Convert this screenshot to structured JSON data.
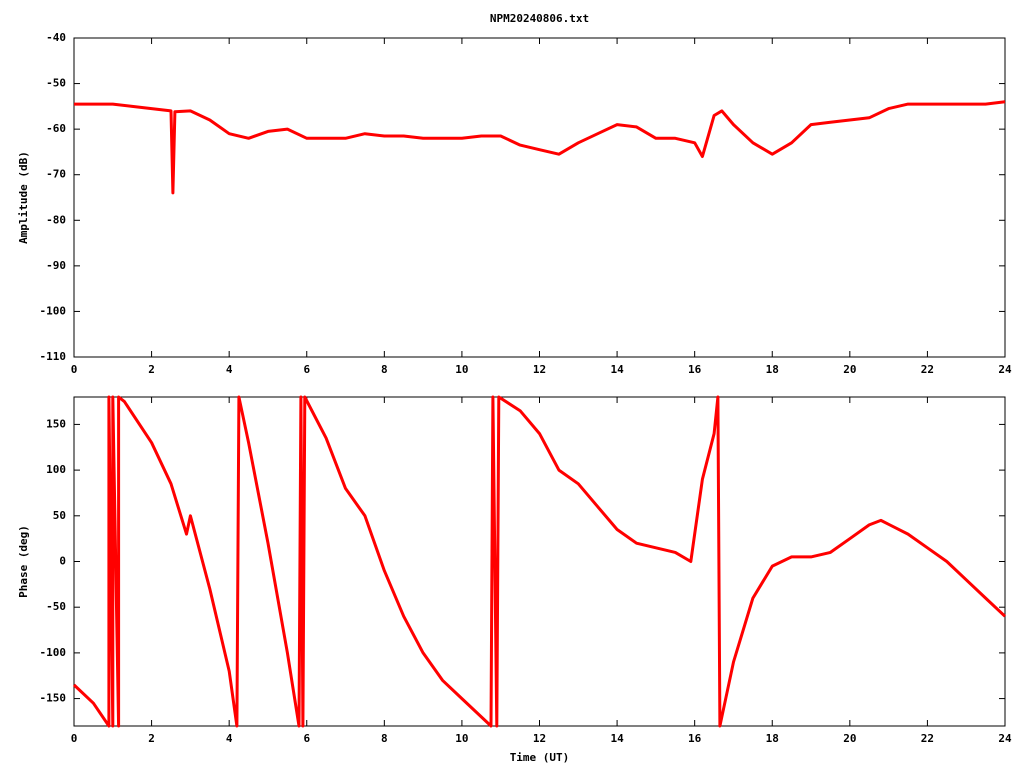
{
  "chart_data": [
    {
      "type": "line",
      "title": "NPM20240806.txt",
      "ylabel": "Amplitude (dB)",
      "xlim": [
        0,
        24
      ],
      "xticks": [
        0,
        2,
        4,
        6,
        8,
        10,
        12,
        14,
        16,
        18,
        20,
        22,
        24
      ],
      "ylim": [
        -110,
        -40
      ],
      "yticks": [
        -40,
        -50,
        -60,
        -70,
        -80,
        -90,
        -100,
        -110
      ],
      "x": [
        0,
        0.5,
        1,
        1.5,
        2,
        2.5,
        2.55,
        2.6,
        3,
        3.5,
        4,
        4.5,
        5,
        5.5,
        6,
        6.5,
        7,
        7.5,
        8,
        8.5,
        9,
        9.5,
        10,
        10.5,
        11,
        11.5,
        12,
        12.5,
        13,
        13.5,
        14,
        14.5,
        15,
        15.5,
        16,
        16.2,
        16.5,
        16.7,
        17,
        17.5,
        18,
        18.5,
        19,
        19.5,
        20,
        20.5,
        21,
        21.5,
        22,
        22.5,
        23,
        23.5,
        24
      ],
      "series": [
        {
          "color": "#ff0000",
          "values": [
            -54.5,
            -54.5,
            -54.5,
            -55,
            -55.5,
            -56,
            -74,
            -56.2,
            -56,
            -58,
            -61,
            -62,
            -60.5,
            -60,
            -62,
            -62,
            -62,
            -61,
            -61.5,
            -61.5,
            -62,
            -62,
            -62,
            -61.5,
            -61.5,
            -63.5,
            -64.5,
            -65.5,
            -63,
            -61,
            -59,
            -59.5,
            -62,
            -62,
            -63,
            -66,
            -57,
            -56,
            -59,
            -63,
            -65.5,
            -63,
            -59,
            -58.5,
            -58,
            -57.5,
            -55.5,
            -54.5,
            -54.5,
            -54.5,
            -54.5,
            -54.5,
            -54
          ]
        }
      ]
    },
    {
      "type": "line",
      "xlabel": "Time (UT)",
      "ylabel": "Phase (deg)",
      "xlim": [
        0,
        24
      ],
      "xticks": [
        0,
        2,
        4,
        6,
        8,
        10,
        12,
        14,
        16,
        18,
        20,
        22,
        24
      ],
      "ylim": [
        -180,
        180
      ],
      "yticks": [
        150,
        100,
        50,
        0,
        -50,
        -100,
        -150
      ],
      "x": [
        0,
        0.5,
        0.9,
        0.9,
        1.0,
        1.0,
        1.15,
        1.15,
        1.3,
        2,
        2.5,
        2.9,
        3.0,
        3.5,
        4.0,
        4.2,
        4.25,
        4.5,
        5,
        5.5,
        5.8,
        5.85,
        5.9,
        5.95,
        6.5,
        7,
        7.5,
        8,
        8.5,
        9,
        9.5,
        10,
        10.5,
        10.75,
        10.8,
        10.9,
        10.95,
        11.5,
        12,
        12.5,
        13,
        13.5,
        14,
        14.5,
        15,
        15.5,
        15.9,
        16.2,
        16.5,
        16.6,
        16.65,
        17,
        17.5,
        18,
        18.5,
        19,
        19.5,
        20,
        20.5,
        20.8,
        21.5,
        22,
        22.5,
        23,
        23.5,
        24
      ],
      "series": [
        {
          "color": "#ff0000",
          "values": [
            -135,
            -155,
            -180,
            180,
            -180,
            180,
            -180,
            180,
            175,
            130,
            85,
            30,
            50,
            -30,
            -120,
            -180,
            180,
            130,
            20,
            -100,
            -180,
            180,
            -180,
            180,
            135,
            80,
            50,
            -10,
            -60,
            -100,
            -130,
            -150,
            -170,
            -180,
            180,
            -180,
            180,
            165,
            140,
            100,
            85,
            60,
            35,
            20,
            15,
            10,
            0,
            90,
            140,
            180,
            -180,
            -110,
            -40,
            -5,
            5,
            5,
            10,
            25,
            40,
            45,
            30,
            15,
            0,
            -20,
            -40,
            -60
          ]
        }
      ]
    }
  ]
}
